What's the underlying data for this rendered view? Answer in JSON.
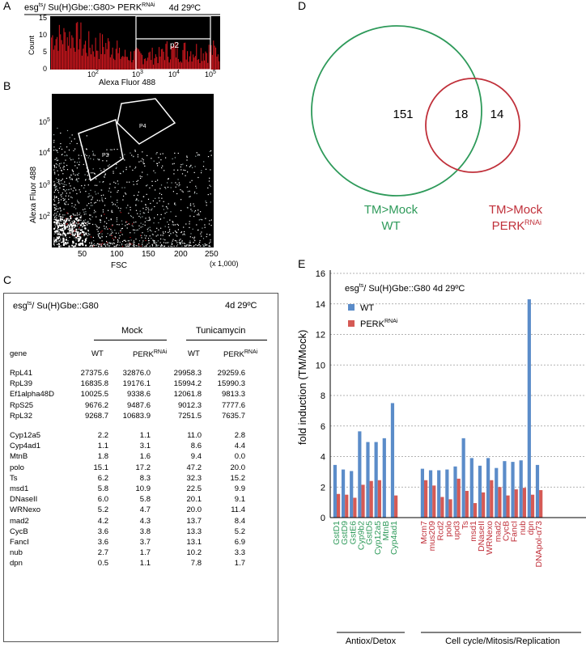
{
  "panels": {
    "a": "A",
    "b": "B",
    "c": "C",
    "d": "D",
    "e": "E"
  },
  "panelA": {
    "title_pre": "esg",
    "title_sup": "ts",
    "title_mid": "/ Su(H)Gbe::G80> PERK",
    "title_sup2": "RNAi",
    "title_cond": "4d 29ºC",
    "ylabel": "Count",
    "xlabel": "Alexa Fluor 488",
    "yticks": [
      "0",
      "5",
      "10",
      "15"
    ],
    "xticks": [
      {
        "base": "10",
        "exp": "2"
      },
      {
        "base": "10",
        "exp": "3"
      },
      {
        "base": "10",
        "exp": "4"
      },
      {
        "base": "10",
        "exp": "5"
      }
    ],
    "gate": "p2"
  },
  "panelB": {
    "ylabel": "Alexa Fluor 488",
    "xlabel": "FSC",
    "xunit": "(x 1,000)",
    "xticks": [
      "50",
      "100",
      "150",
      "200",
      "250"
    ],
    "yticks": [
      {
        "base": "10",
        "exp": "2"
      },
      {
        "base": "10",
        "exp": "3"
      },
      {
        "base": "10",
        "exp": "4"
      },
      {
        "base": "10",
        "exp": "5"
      }
    ],
    "gates": [
      "P3",
      "P4"
    ]
  },
  "panelC": {
    "title_pre": "esg",
    "title_sup": "ts",
    "title_mid": "/ Su(H)Gbe::G80",
    "cond": "4d 29ºC",
    "group1": "Mock",
    "group2": "Tunicamycin",
    "col_gene": "gene",
    "col_wt": "WT",
    "col_perk": "PERK",
    "col_perk_sup": "RNAi",
    "rows1": [
      {
        "gene": "RpL41",
        "v": [
          "27375.6",
          "32876.0",
          "29958.3",
          "29259.6"
        ]
      },
      {
        "gene": "RpL39",
        "v": [
          "16835.8",
          "19176.1",
          "15994.2",
          "15990.3"
        ]
      },
      {
        "gene": "Ef1alpha48D",
        "v": [
          "10025.5",
          "9338.6",
          "12061.8",
          "9813.3"
        ]
      },
      {
        "gene": "RpS25",
        "v": [
          "9676.2",
          "9487.6",
          "9012.3",
          "7777.6"
        ]
      },
      {
        "gene": "RpL32",
        "v": [
          "9268.7",
          "10683.9",
          "7251.5",
          "7635.7"
        ]
      }
    ],
    "rows2": [
      {
        "gene": "Cyp12a5",
        "v": [
          "2.2",
          "1.1",
          "11.0",
          "2.8"
        ]
      },
      {
        "gene": "Cyp4ad1",
        "v": [
          "1.1",
          "3.1",
          "8.6",
          "4.4"
        ]
      },
      {
        "gene": "MtnB",
        "v": [
          "1.8",
          "1.6",
          "9.4",
          "0.0"
        ]
      },
      {
        "gene": "polo",
        "v": [
          "15.1",
          "17.2",
          "47.2",
          "20.0"
        ]
      },
      {
        "gene": "Ts",
        "v": [
          "6.2",
          "8.3",
          "32.3",
          "15.2"
        ]
      },
      {
        "gene": "msd1",
        "v": [
          "5.8",
          "10.9",
          "22.5",
          "9.9"
        ]
      },
      {
        "gene": "DNaseII",
        "v": [
          "6.0",
          "5.8",
          "20.1",
          "9.1"
        ]
      },
      {
        "gene": "WRNexo",
        "v": [
          "5.2",
          "4.7",
          "20.0",
          "11.4"
        ]
      },
      {
        "gene": "mad2",
        "v": [
          "4.2",
          "4.3",
          "13.7",
          "8.4"
        ]
      },
      {
        "gene": "CycB",
        "v": [
          "3.6",
          "3.8",
          "13.3",
          "5.2"
        ]
      },
      {
        "gene": "FancI",
        "v": [
          "3.6",
          "3.7",
          "13.1",
          "6.9"
        ]
      },
      {
        "gene": "nub",
        "v": [
          "2.7",
          "1.7",
          "10.2",
          "3.3"
        ]
      },
      {
        "gene": "dpn",
        "v": [
          "0.5",
          "1.1",
          "7.8",
          "1.7"
        ]
      }
    ]
  },
  "panelD": {
    "left_only": "151",
    "overlap": "18",
    "right_only": "14",
    "left_label1": "TM>Mock",
    "left_label2": "WT",
    "right_label1": "TM>Mock",
    "right_label2": "PERK",
    "right_sup": "RNAi",
    "colors": {
      "wt": "#2e9a5a",
      "perk": "#c0303a"
    }
  },
  "chart_data": {
    "type": "bar",
    "title_pre": "esg",
    "title_sup": "ts",
    "title_rest": "/ Su(H)Gbe::G80  4d 29ºC",
    "ylabel": "fold induction (TM/Mock)",
    "ylim": [
      0,
      16
    ],
    "yticks": [
      "0",
      "2",
      "4",
      "6",
      "8",
      "10",
      "12",
      "14",
      "16"
    ],
    "grid": true,
    "legend_position": "top-left",
    "group1_label": "Antiox/Detox",
    "group2_label": "Cell cycle/Mitosis/Replication",
    "colors": {
      "wt": "#5b8cc9",
      "perk": "#d55a55",
      "group1_text": "#2e9a5a",
      "group2_text": "#c0303a"
    },
    "group1": [
      "GstD1",
      "GstD9",
      "GstE6",
      "Cyp9b2",
      "GstD5",
      "Cyp12a5",
      "MtnB",
      "Cyp4ad1"
    ],
    "group2": [
      "Mcm7",
      "mus209",
      "Rcd2",
      "polo",
      "upd3",
      "Ts",
      "msd1",
      "DNaseII",
      "WRNexo",
      "mad2",
      "CycB",
      "FancI",
      "nub",
      "dpn",
      "DNApol-α73"
    ],
    "series": [
      {
        "name": "WT",
        "legend": "WT",
        "values1": [
          3.45,
          3.15,
          3.05,
          5.65,
          4.95,
          4.95,
          5.2,
          7.5
        ],
        "values2": [
          3.2,
          3.1,
          3.1,
          3.15,
          3.35,
          5.2,
          3.9,
          3.4,
          3.9,
          3.25,
          3.7,
          3.65,
          3.75,
          14.3,
          3.45
        ]
      },
      {
        "name": "PERK",
        "legend": "PERK",
        "legend_sup": "RNAi",
        "values1": [
          1.55,
          1.5,
          1.3,
          2.15,
          2.4,
          2.45,
          0,
          1.45
        ],
        "values2": [
          2.45,
          2.1,
          1.35,
          1.2,
          2.55,
          1.75,
          0.95,
          1.65,
          2.45,
          2.0,
          1.45,
          1.85,
          1.95,
          1.5,
          1.8
        ]
      }
    ]
  }
}
